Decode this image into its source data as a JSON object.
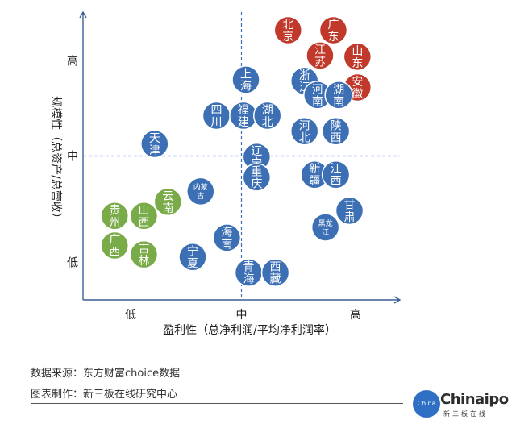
{
  "chart_data": {
    "type": "scatter",
    "xlabel": "盈利性（总净利润/平均净利润率）",
    "ylabel": "规模性（总资产/总营收）",
    "x_ticks": [
      "低",
      "中",
      "高"
    ],
    "y_ticks": [
      "高",
      "中",
      "低"
    ],
    "xlim": [
      0,
      10
    ],
    "ylim": [
      0,
      10
    ],
    "midline_x": 5,
    "midline_y": 5,
    "colors": {
      "high": "#c0392b",
      "mid": "#3c6fb4",
      "low": "#79ab49"
    },
    "points": [
      {
        "label": "北京",
        "x": 6.47,
        "y": 9.37,
        "group": "high"
      },
      {
        "label": "广东",
        "x": 7.9,
        "y": 9.37,
        "group": "high"
      },
      {
        "label": "江苏",
        "x": 7.48,
        "y": 8.49,
        "group": "high"
      },
      {
        "label": "山东",
        "x": 8.66,
        "y": 8.45,
        "group": "high"
      },
      {
        "label": "安徽",
        "x": 8.66,
        "y": 7.38,
        "group": "high"
      },
      {
        "label": "上海",
        "x": 5.14,
        "y": 7.65,
        "group": "mid"
      },
      {
        "label": "浙江",
        "x": 6.99,
        "y": 7.61,
        "group": "mid"
      },
      {
        "label": "河南",
        "x": 7.4,
        "y": 7.12,
        "group": "mid"
      },
      {
        "label": "湖南",
        "x": 8.07,
        "y": 7.12,
        "group": "mid"
      },
      {
        "label": "四川",
        "x": 4.21,
        "y": 6.4,
        "group": "mid"
      },
      {
        "label": "福建",
        "x": 5.06,
        "y": 6.4,
        "group": "mid"
      },
      {
        "label": "湖北",
        "x": 5.82,
        "y": 6.4,
        "group": "mid"
      },
      {
        "label": "河北",
        "x": 6.99,
        "y": 5.86,
        "group": "mid"
      },
      {
        "label": "陕西",
        "x": 7.98,
        "y": 5.86,
        "group": "mid"
      },
      {
        "label": "天津",
        "x": 2.26,
        "y": 5.42,
        "group": "mid"
      },
      {
        "label": "辽宁",
        "x": 5.48,
        "y": 4.97,
        "group": "mid"
      },
      {
        "label": "重庆",
        "x": 5.48,
        "y": 4.26,
        "group": "mid"
      },
      {
        "label": "新疆",
        "x": 7.31,
        "y": 4.35,
        "group": "mid"
      },
      {
        "label": "江西",
        "x": 7.98,
        "y": 4.35,
        "group": "mid"
      },
      {
        "label": "内蒙古",
        "x": 3.71,
        "y": 3.77,
        "group": "mid"
      },
      {
        "label": "甘肃",
        "x": 8.41,
        "y": 3.1,
        "group": "mid"
      },
      {
        "label": "黑龙江",
        "x": 7.65,
        "y": 2.52,
        "group": "mid"
      },
      {
        "label": "海南",
        "x": 4.54,
        "y": 2.16,
        "group": "mid"
      },
      {
        "label": "宁夏",
        "x": 3.46,
        "y": 1.49,
        "group": "mid"
      },
      {
        "label": "青海",
        "x": 5.23,
        "y": 0.95,
        "group": "mid"
      },
      {
        "label": "西藏",
        "x": 6.07,
        "y": 0.95,
        "group": "mid"
      },
      {
        "label": "云南",
        "x": 2.68,
        "y": 3.41,
        "group": "low"
      },
      {
        "label": "贵州",
        "x": 1.0,
        "y": 2.92,
        "group": "low"
      },
      {
        "label": "山西",
        "x": 1.92,
        "y": 2.92,
        "group": "low"
      },
      {
        "label": "广西",
        "x": 1.0,
        "y": 1.89,
        "group": "low"
      },
      {
        "label": "吉林",
        "x": 1.92,
        "y": 1.58,
        "group": "low"
      }
    ]
  },
  "footer": {
    "source": "数据来源：东方财富choice数据",
    "producer": "图表制作：新三板在线研究中心"
  },
  "logo": {
    "circle_text": "China ipo",
    "name": "Chinaipo",
    "subtitle": "新三板在线"
  }
}
